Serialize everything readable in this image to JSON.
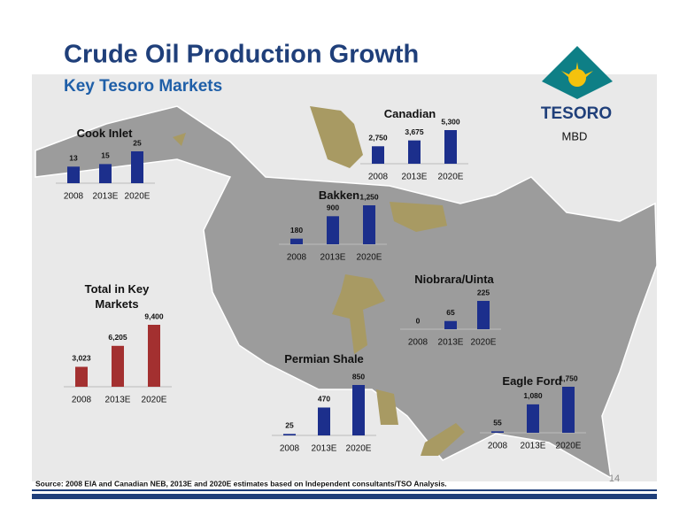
{
  "title": "Crude Oil Production Growth",
  "subtitle": "Key Tesoro Markets",
  "logo": "TESORO",
  "unit": "MBD",
  "source": "Source: 2008 EIA and Canadian NEB, 2013E and 2020E estimates based on Independent consultants/TSO Analysis.",
  "page_number": "14",
  "chart_data": [
    {
      "type": "bar",
      "title": "Cook Inlet",
      "categories": [
        "2008",
        "2013E",
        "2020E"
      ],
      "values": [
        13,
        15,
        25
      ],
      "color": "#1c2f8c"
    },
    {
      "type": "bar",
      "title": "Canadian",
      "categories": [
        "2008",
        "2013E",
        "2020E"
      ],
      "values": [
        2750,
        3675,
        5300
      ],
      "value_labels": [
        "2,750",
        "3,675",
        "5,300"
      ],
      "color": "#1c2f8c"
    },
    {
      "type": "bar",
      "title": "Bakken",
      "categories": [
        "2008",
        "2013E",
        "2020E"
      ],
      "values": [
        180,
        900,
        1250
      ],
      "value_labels": [
        "180",
        "900",
        "1,250"
      ],
      "color": "#1c2f8c"
    },
    {
      "type": "bar",
      "title": "Total in Key Markets",
      "categories": [
        "2008",
        "2013E",
        "2020E"
      ],
      "values": [
        3023,
        6205,
        9400
      ],
      "value_labels": [
        "3,023",
        "6,205",
        "9,400"
      ],
      "color": "#a33030"
    },
    {
      "type": "bar",
      "title": "Niobrara/Uinta",
      "categories": [
        "2008",
        "2013E",
        "2020E"
      ],
      "values": [
        0,
        65,
        225
      ],
      "color": "#1c2f8c"
    },
    {
      "type": "bar",
      "title": "Permian Shale",
      "categories": [
        "2008",
        "2013E",
        "2020E"
      ],
      "values": [
        25,
        470,
        850
      ],
      "color": "#1c2f8c"
    },
    {
      "type": "bar",
      "title": "Eagle Ford",
      "categories": [
        "2008",
        "2013E",
        "2020E"
      ],
      "values": [
        55,
        1080,
        1750
      ],
      "value_labels": [
        "55",
        "1,080",
        "1,750"
      ],
      "color": "#1c2f8c"
    }
  ]
}
